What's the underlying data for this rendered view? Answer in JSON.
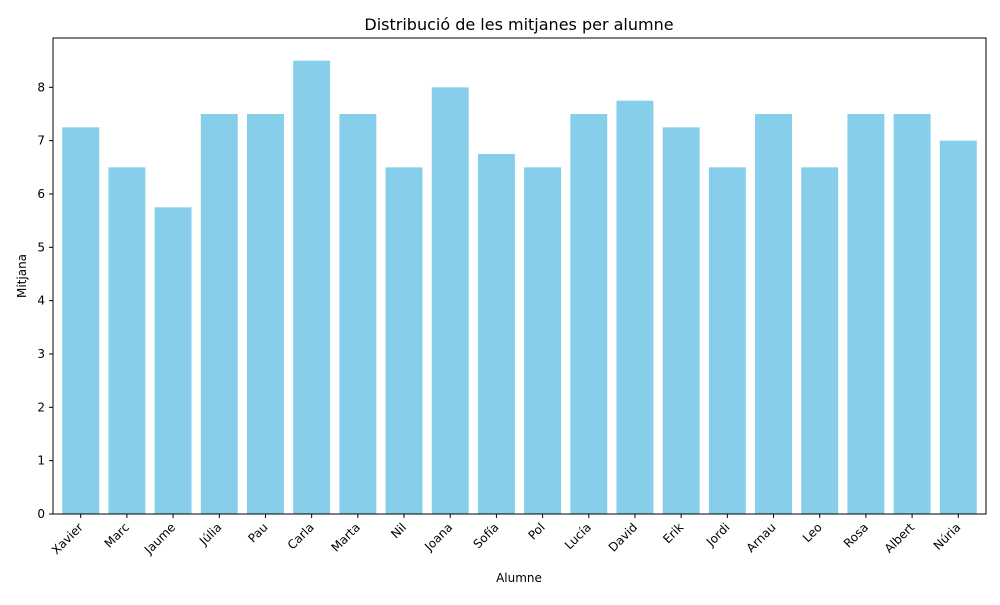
{
  "chart_data": {
    "type": "bar",
    "title": "Distribució de les mitjanes per alumne",
    "xlabel": "Alumne",
    "ylabel": "Mitjana",
    "categories": [
      "Xavier",
      "Marc",
      "Jaume",
      "Júlia",
      "Pau",
      "Carla",
      "Marta",
      "Nil",
      "Joana",
      "Sofía",
      "Pol",
      "Lucía",
      "David",
      "Erik",
      "Jordi",
      "Arnau",
      "Leo",
      "Rosa",
      "Albert",
      "Núria"
    ],
    "values": [
      7.25,
      6.5,
      5.75,
      7.5,
      7.5,
      8.5,
      7.5,
      6.5,
      8.0,
      6.75,
      6.5,
      7.5,
      7.75,
      7.25,
      6.5,
      7.5,
      6.5,
      7.5,
      7.5,
      7.0
    ],
    "ylim": [
      0,
      8.925
    ],
    "yticks": [
      0,
      1,
      2,
      3,
      4,
      5,
      6,
      7,
      8
    ],
    "grid": false,
    "bar_color": "#87ceeb",
    "x_tick_rotation_deg": 45
  }
}
